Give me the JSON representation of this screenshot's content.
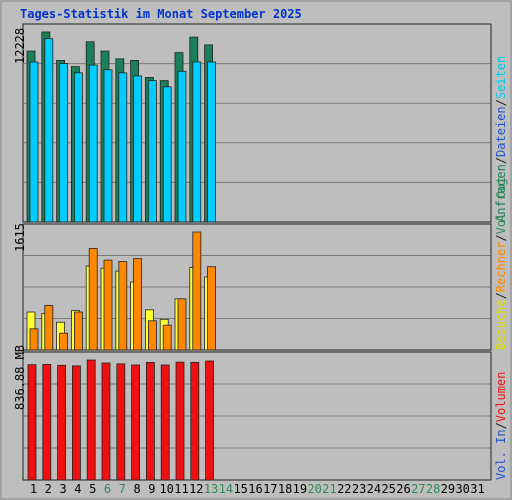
{
  "title": "Tages-Statistik im Monat September 2025",
  "days": [
    "1",
    "2",
    "3",
    "4",
    "5",
    "6",
    "7",
    "8",
    "9",
    "10",
    "11",
    "12",
    "13",
    "14",
    "15",
    "16",
    "17",
    "18",
    "19",
    "20",
    "21",
    "22",
    "23",
    "24",
    "25",
    "26",
    "27",
    "28",
    "29",
    "30",
    "31"
  ],
  "weekend_days": [
    "6",
    "7",
    "13",
    "14",
    "20",
    "21",
    "27",
    "28"
  ],
  "colors": {
    "background": "#bebebe",
    "title": "#0033cc",
    "weekday_label": "#000000",
    "weekend_label": "#2e8b57",
    "hits": "#1a7f5a",
    "files": "#00ccff",
    "pages": "#00ccee",
    "visits": "#ffff33",
    "sites": "#ff8800",
    "kbytes": "#ee1111",
    "kb_in": "#2255cc",
    "kb_out": "#2e8b57",
    "separator": "#444444"
  },
  "chart_data": [
    {
      "type": "bar",
      "panel": "top",
      "ymax_label": "12228",
      "ymax": 12228,
      "x": [
        "1",
        "2",
        "3",
        "4",
        "5",
        "6",
        "7",
        "8",
        "9",
        "10",
        "11",
        "12",
        "13"
      ],
      "series": [
        {
          "name": "Anfragen",
          "values": [
            11000,
            12228,
            10400,
            10000,
            11600,
            11000,
            10500,
            10400,
            9300,
            9100,
            10900,
            11900,
            11400
          ]
        },
        {
          "name": "Dateien",
          "values": [
            10300,
            11800,
            10200,
            9600,
            10100,
            9800,
            9600,
            9400,
            9100,
            8700,
            9700,
            10300,
            10300
          ]
        },
        {
          "name": "Seiten",
          "values": [
            0,
            0,
            0,
            0,
            0,
            0,
            0,
            0,
            0,
            0,
            0,
            0,
            0
          ]
        }
      ]
    },
    {
      "type": "bar",
      "panel": "middle",
      "ymax_label": "1615",
      "ymax": 1615,
      "x": [
        "1",
        "2",
        "3",
        "4",
        "5",
        "6",
        "7",
        "8",
        "9",
        "10",
        "11",
        "12",
        "13"
      ],
      "series": [
        {
          "name": "Besuche",
          "values": [
            520,
            500,
            380,
            540,
            1150,
            1120,
            1080,
            930,
            550,
            420,
            700,
            1130,
            1000
          ]
        },
        {
          "name": "Rechner",
          "values": [
            290,
            610,
            230,
            520,
            1390,
            1230,
            1210,
            1250,
            400,
            340,
            700,
            1615,
            1140
          ]
        }
      ]
    },
    {
      "type": "bar",
      "panel": "bottom",
      "ymax_label": "836.88 MB",
      "ymax": 836.88,
      "unit": "MB",
      "x": [
        "1",
        "2",
        "3",
        "4",
        "5",
        "6",
        "7",
        "8",
        "9",
        "10",
        "11",
        "12",
        "13"
      ],
      "series": [
        {
          "name": "Volumen",
          "values": [
            804,
            806,
            800,
            796,
            836.88,
            816,
            810,
            802,
            820,
            802,
            822,
            820,
            830
          ]
        },
        {
          "name": "Vol. In",
          "values": [
            0,
            0,
            0,
            0,
            0,
            0,
            0,
            0,
            0,
            0,
            0,
            0,
            0
          ]
        },
        {
          "name": "Vol. Out",
          "values": [
            0,
            0,
            0,
            0,
            0,
            0,
            0,
            0,
            0,
            0,
            0,
            0,
            0
          ]
        }
      ]
    }
  ],
  "right_legends": {
    "top": [
      {
        "text": "Anfragen",
        "color": "#1a7f5a"
      },
      {
        "text": "/",
        "color": "#222222"
      },
      {
        "text": "Dateien",
        "color": "#2255cc"
      },
      {
        "text": "/",
        "color": "#222222"
      },
      {
        "text": "Seiten",
        "color": "#00ccee"
      }
    ],
    "middle": [
      {
        "text": "Besuche",
        "color": "#dddd00"
      },
      {
        "text": "/",
        "color": "#222222"
      },
      {
        "text": "Rechner",
        "color": "#ff8800"
      },
      {
        "text": "/",
        "color": "#222222"
      },
      {
        "text": "Vol. Out",
        "color": "#2e8b57"
      }
    ],
    "bottom": [
      {
        "text": "Vol. In",
        "color": "#2255cc"
      },
      {
        "text": "/",
        "color": "#222222"
      },
      {
        "text": "Volumen",
        "color": "#ee1111"
      }
    ]
  }
}
